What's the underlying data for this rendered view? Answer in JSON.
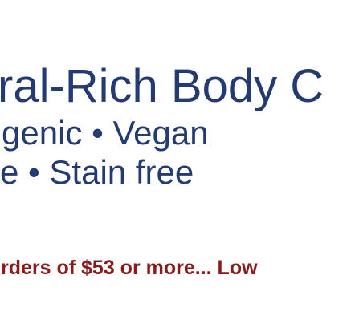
{
  "banner": {
    "headline": "ral-Rich Body C",
    "subline_1": "genic • Vegan",
    "subline_2": "e • Stain free",
    "promo": "rders of $53 or more... Low"
  },
  "colors": {
    "headline": "#243a73",
    "promo": "#8b1a1a",
    "background": "#ffffff"
  }
}
